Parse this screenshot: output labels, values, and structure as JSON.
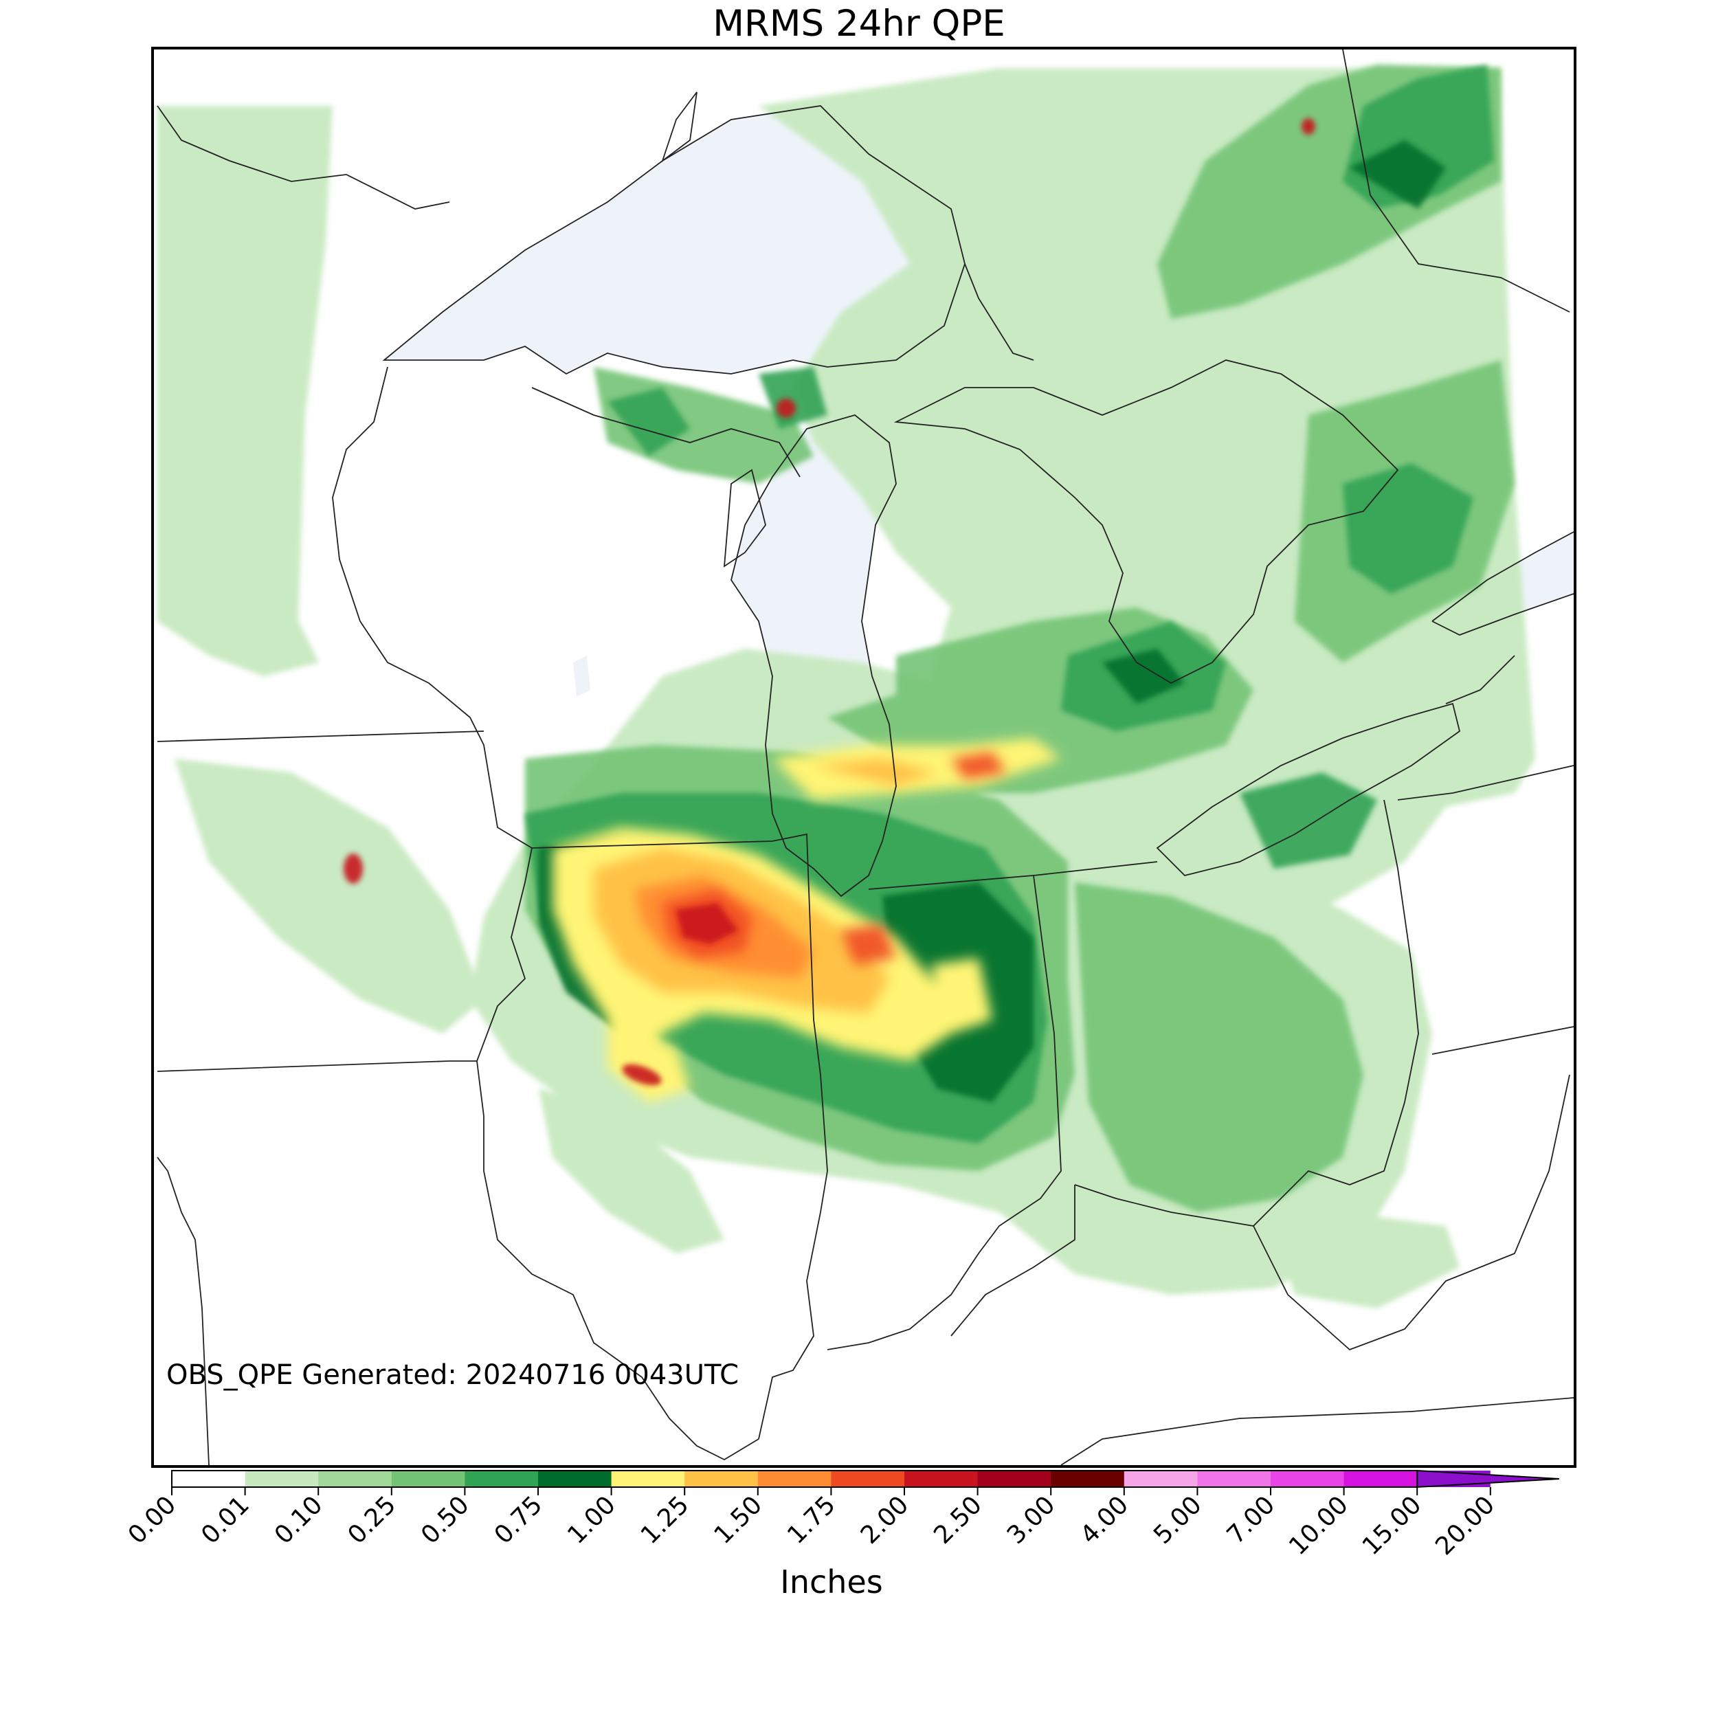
{
  "title": "MRMS 24hr QPE",
  "generated_note": "OBS_QPE Generated: 20240716 0043UTC",
  "colorbar": {
    "label": "Inches",
    "ticks": [
      "0.00",
      "0.01",
      "0.10",
      "0.25",
      "0.50",
      "0.75",
      "1.00",
      "1.25",
      "1.50",
      "1.75",
      "2.00",
      "2.50",
      "3.00",
      "4.00",
      "5.00",
      "7.00",
      "10.00",
      "15.00",
      "20.00"
    ],
    "colors": [
      "#ffffff",
      "#c7e9c0",
      "#a1d99b",
      "#74c476",
      "#31a354",
      "#006d2c",
      "#fff475",
      "#ffc247",
      "#ff8c33",
      "#f04a23",
      "#c8141e",
      "#a3001e",
      "#6b0000",
      "#f5a6e8",
      "#ef74e8",
      "#e844e8",
      "#d413e0",
      "#8c0fcc"
    ],
    "extend": "max"
  },
  "map": {
    "region": "Upper Midwest and Great Lakes",
    "lake_color": "#eef3fa",
    "border_color": "#222222",
    "heaviest_rain_area": "northern Illinois and northwestern Indiana"
  }
}
